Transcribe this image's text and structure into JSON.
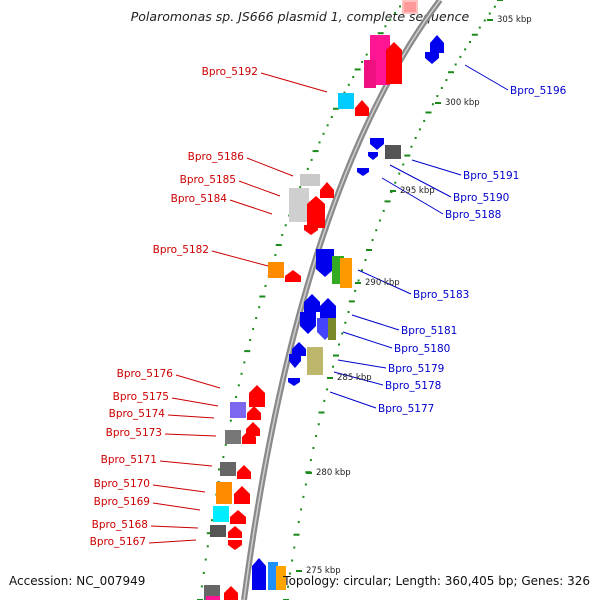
{
  "title": "Polaromonas sp. JS666 plasmid 1, complete sequence",
  "footer": {
    "accession": "Accession: NC_007949",
    "summary": "Topology: circular; Length: 360,405 bp; Genes: 326"
  },
  "colors": {
    "left_label": "#cc0000",
    "right_label": "#0000cc",
    "backbone": "#8a8a8a",
    "tick_green": "#1a8a1a",
    "gene_red": "#ff0000",
    "gene_blue": "#0000ee"
  },
  "scale_labels": [
    "305 kbp",
    "300 kbp",
    "295 kbp",
    "290 kbp",
    "285 kbp",
    "280 kbp",
    "275 kbp"
  ],
  "left_labels": [
    "Bpro_5192",
    "Bpro_5186",
    "Bpro_5185",
    "Bpro_5184",
    "Bpro_5182",
    "Bpro_5176",
    "Bpro_5175",
    "Bpro_5174",
    "Bpro_5173",
    "Bpro_5171",
    "Bpro_5170",
    "Bpro_5169",
    "Bpro_5168",
    "Bpro_5167"
  ],
  "right_labels": [
    "Bpro_5196",
    "Bpro_5191",
    "Bpro_5190",
    "Bpro_5188",
    "Bpro_5183",
    "Bpro_5181",
    "Bpro_5180",
    "Bpro_5179",
    "Bpro_5178",
    "Bpro_5177"
  ]
}
